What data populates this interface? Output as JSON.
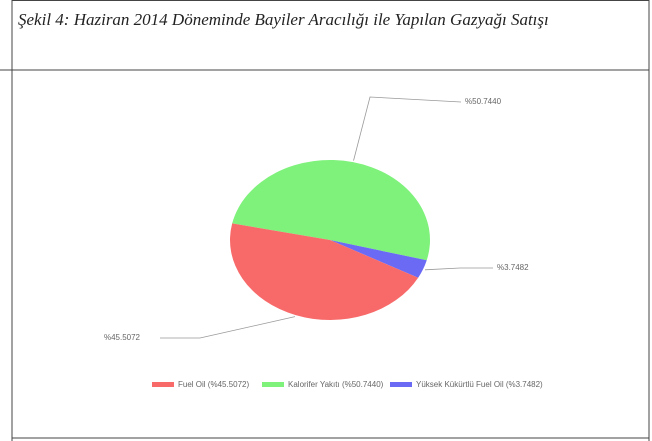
{
  "caption": "Şekil 4: Haziran 2014 Döneminde Bayiler Aracılığı ile Yapılan Gazyağı Satışı",
  "chart_data": {
    "type": "pie",
    "categories": [
      "Fuel Oil (%45.5072)",
      "Kalorifer Yakıtı (%50.7440)",
      "Yüksek Kükürtlü Fuel Oil (%3.7482)"
    ],
    "values": [
      45.5072,
      50.744,
      3.7482
    ],
    "value_labels": [
      "%45.5072",
      "%50.7440",
      "%3.7482"
    ],
    "colors": [
      "#f86a6a",
      "#7ef27b",
      "#6a6af5"
    ]
  }
}
